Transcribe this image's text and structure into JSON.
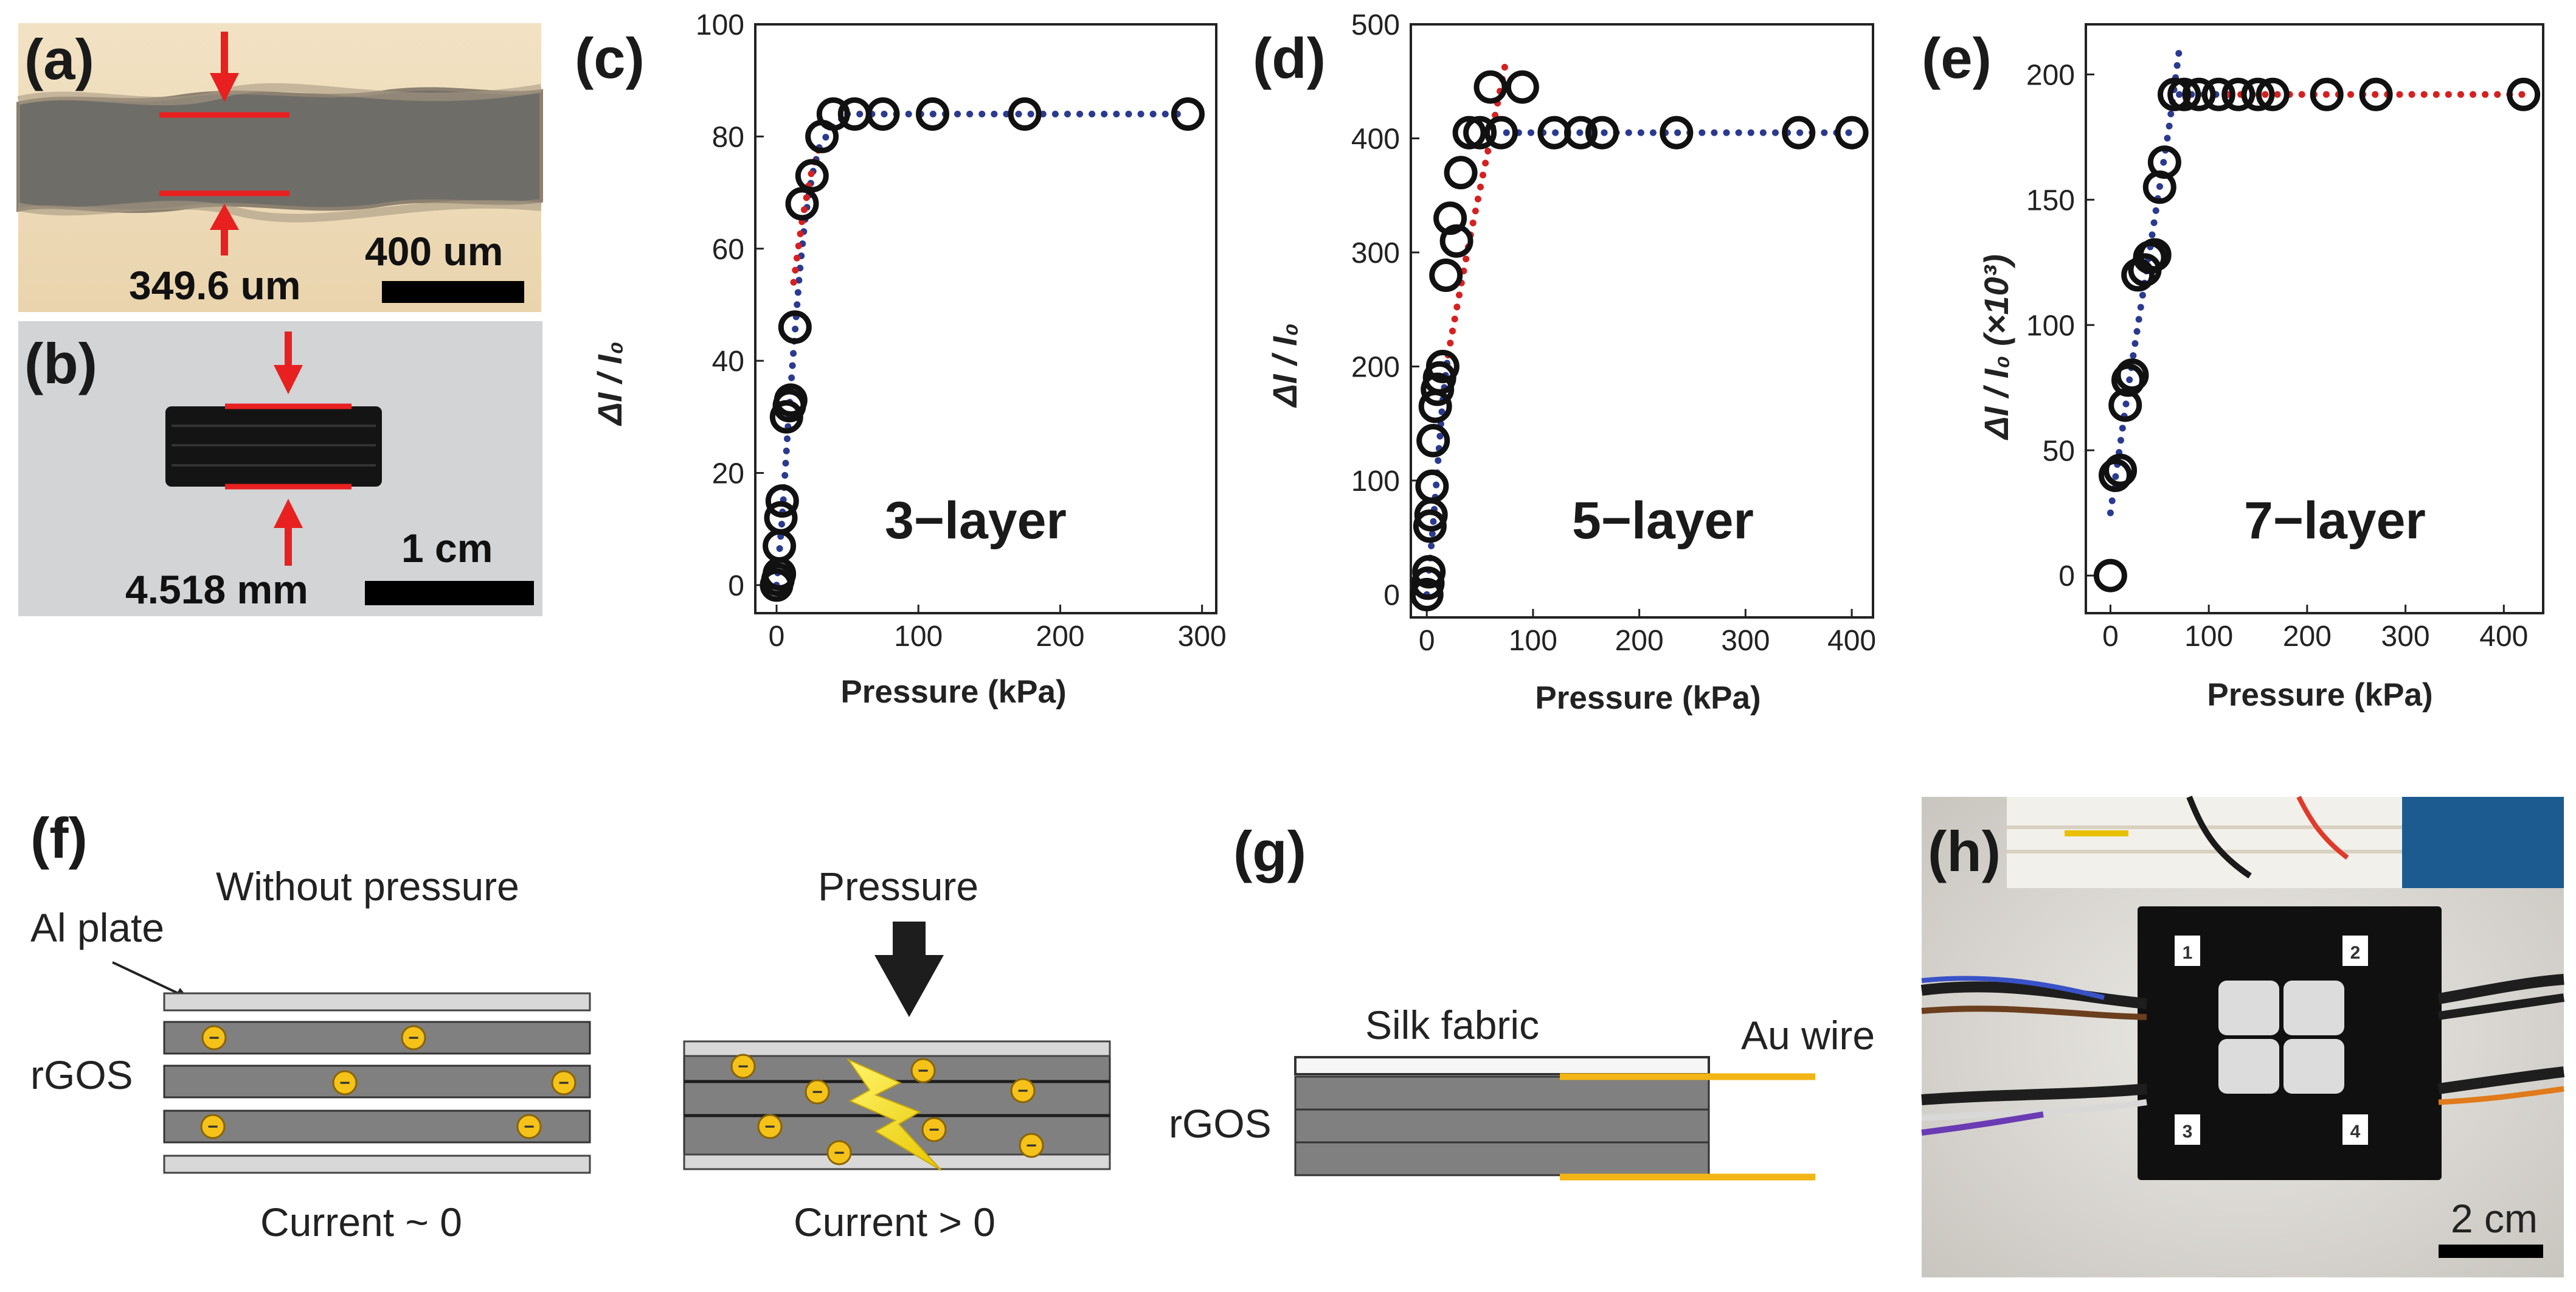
{
  "panels": {
    "a": {
      "letter": "(a)",
      "measure": "349.6 um",
      "scale": "400 um"
    },
    "b": {
      "letter": "(b)",
      "measure": "4.518 mm",
      "scale": "1 cm"
    },
    "f": {
      "letter": "(f)",
      "without_pressure": "Without pressure",
      "al_plate": "Al plate",
      "rgos": "rGOS",
      "current_zero": "Current ~ 0",
      "pressure": "Pressure",
      "current_pos": "Current > 0",
      "electron": "−"
    },
    "g": {
      "letter": "(g)",
      "silk_fabric": "Silk fabric",
      "au_wire": "Au wire",
      "rgos": "rGOS"
    },
    "h": {
      "letter": "(h)",
      "scale": "2 cm",
      "sensors": [
        "1",
        "2",
        "3",
        "4"
      ]
    }
  },
  "chart_data": [
    {
      "id": "c",
      "letter": "(c)",
      "type": "scatter",
      "label": "3−layer",
      "xlabel": "Pressure (kPa)",
      "ylabel": "ΔI / I₀",
      "xlim": [
        -15,
        310
      ],
      "ylim": [
        -5,
        100
      ],
      "xticks": [
        0,
        100,
        200,
        300
      ],
      "yticks": [
        0,
        20,
        40,
        60,
        80,
        100
      ],
      "points": [
        [
          0,
          0
        ],
        [
          1,
          1
        ],
        [
          2,
          2
        ],
        [
          2,
          7
        ],
        [
          3,
          12
        ],
        [
          4,
          15
        ],
        [
          7,
          30
        ],
        [
          9,
          32
        ],
        [
          10,
          33
        ],
        [
          13,
          46
        ],
        [
          18,
          68
        ],
        [
          25,
          73
        ],
        [
          32,
          80
        ],
        [
          40,
          84
        ],
        [
          55,
          84
        ],
        [
          75,
          84
        ],
        [
          110,
          84
        ],
        [
          175,
          84
        ],
        [
          290,
          84
        ]
      ],
      "fits": [
        {
          "color": "#2b3a8f",
          "points": [
            [
              0,
              0
            ],
            [
              4,
              12
            ],
            [
              8,
              28
            ],
            [
              12,
              42
            ],
            [
              16,
              55
            ],
            [
              20,
              65
            ],
            [
              25,
              73
            ],
            [
              30,
              78
            ],
            [
              40,
              82
            ],
            [
              50,
              84
            ]
          ]
        },
        {
          "color": "#d62020",
          "points": [
            [
              12,
              54
            ],
            [
              18,
              65
            ],
            [
              24,
              73
            ],
            [
              30,
              78
            ]
          ]
        },
        {
          "color": "#2b3a8f",
          "points": [
            [
              50,
              84
            ],
            [
              290,
              84
            ]
          ]
        }
      ]
    },
    {
      "id": "d",
      "letter": "(d)",
      "type": "scatter",
      "label": "5−layer",
      "xlabel": "Pressure (kPa)",
      "ylabel": "ΔI / I₀",
      "xlim": [
        -15,
        420
      ],
      "ylim": [
        -20,
        500
      ],
      "xticks": [
        0,
        100,
        200,
        300,
        400
      ],
      "yticks": [
        0,
        100,
        200,
        300,
        400,
        500
      ],
      "points": [
        [
          0,
          0
        ],
        [
          1,
          10
        ],
        [
          2,
          20
        ],
        [
          3,
          60
        ],
        [
          4,
          70
        ],
        [
          5,
          95
        ],
        [
          6,
          135
        ],
        [
          8,
          165
        ],
        [
          10,
          180
        ],
        [
          12,
          190
        ],
        [
          15,
          200
        ],
        [
          18,
          280
        ],
        [
          22,
          330
        ],
        [
          28,
          310
        ],
        [
          32,
          370
        ],
        [
          40,
          405
        ],
        [
          50,
          405
        ],
        [
          60,
          445
        ],
        [
          70,
          405
        ],
        [
          90,
          445
        ],
        [
          120,
          405
        ],
        [
          145,
          405
        ],
        [
          165,
          405
        ],
        [
          235,
          405
        ],
        [
          350,
          405
        ],
        [
          400,
          405
        ]
      ],
      "fits": [
        {
          "color": "#2b3a8f",
          "points": [
            [
              0,
              0
            ],
            [
              5,
              50
            ],
            [
              10,
              110
            ],
            [
              15,
              170
            ],
            [
              20,
              210
            ]
          ]
        },
        {
          "color": "#d62020",
          "points": [
            [
              20,
              210
            ],
            [
              40,
              310
            ],
            [
              60,
              400
            ],
            [
              75,
              470
            ]
          ]
        },
        {
          "color": "#2b3a8f",
          "points": [
            [
              75,
              405
            ],
            [
              400,
              405
            ]
          ]
        }
      ]
    },
    {
      "id": "e",
      "letter": "(e)",
      "type": "scatter",
      "label": "7−layer",
      "xlabel": "Pressure (kPa)",
      "ylabel": "ΔI / I₀ (×10³)",
      "xlim": [
        -25,
        440
      ],
      "ylim": [
        -15,
        220
      ],
      "xticks": [
        0,
        100,
        200,
        300,
        400
      ],
      "yticks": [
        0,
        50,
        100,
        150,
        200
      ],
      "points": [
        [
          0,
          0
        ],
        [
          5,
          40
        ],
        [
          10,
          42
        ],
        [
          15,
          68
        ],
        [
          18,
          78
        ],
        [
          22,
          80
        ],
        [
          28,
          120
        ],
        [
          35,
          122
        ],
        [
          40,
          127
        ],
        [
          45,
          128
        ],
        [
          50,
          155
        ],
        [
          55,
          165
        ],
        [
          65,
          192
        ],
        [
          75,
          192
        ],
        [
          90,
          192
        ],
        [
          110,
          192
        ],
        [
          130,
          192
        ],
        [
          150,
          192
        ],
        [
          165,
          192
        ],
        [
          220,
          192
        ],
        [
          270,
          192
        ],
        [
          420,
          192
        ]
      ],
      "fits": [
        {
          "color": "#2b3a8f",
          "points": [
            [
              0,
              25
            ],
            [
              20,
              80
            ],
            [
              40,
              130
            ],
            [
              60,
              180
            ],
            [
              70,
              210
            ]
          ]
        },
        {
          "color": "#2b3a8f",
          "points": [
            [
              70,
              192
            ],
            [
              120,
              192
            ]
          ]
        },
        {
          "color": "#d62020",
          "points": [
            [
              120,
              192
            ],
            [
              420,
              192
            ]
          ]
        }
      ]
    }
  ]
}
